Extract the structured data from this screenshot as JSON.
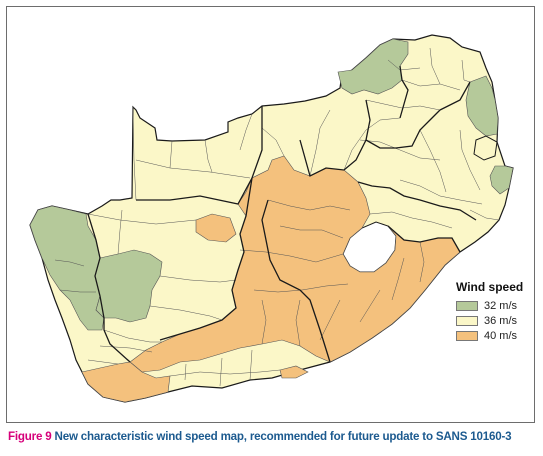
{
  "legend": {
    "title": "Wind speed",
    "items": [
      {
        "label": "32 m/s",
        "color": "#b5c99a"
      },
      {
        "label": "36 m/s",
        "color": "#fbf7c8"
      },
      {
        "label": "40 m/s",
        "color": "#f4c17d"
      }
    ]
  },
  "colors": {
    "zone_32": "#b5c99a",
    "zone_36": "#fbf7c8",
    "zone_40": "#f4c17d",
    "border_major": "#1a1a1a",
    "border_minor": "#555555"
  },
  "caption": {
    "figure_label": "Figure 9",
    "text": "New characteristic wind speed map, recommended for future update to SANS 10160-3"
  }
}
